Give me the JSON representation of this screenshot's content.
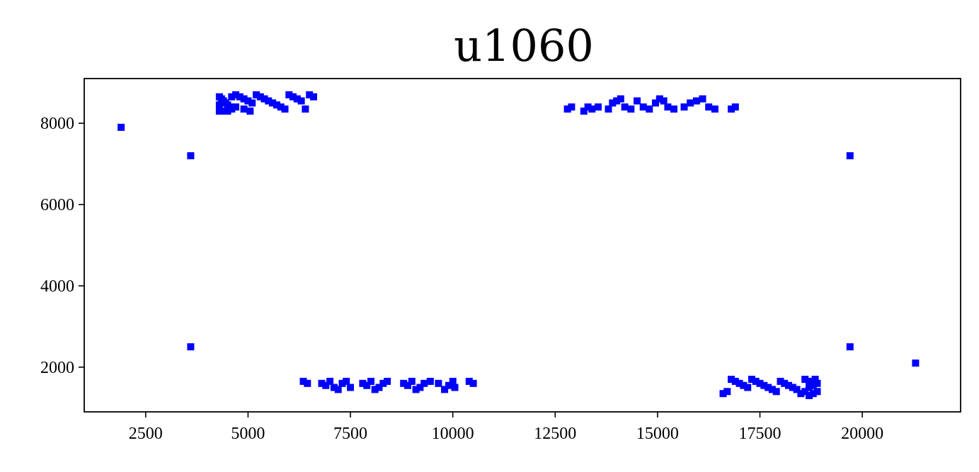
{
  "chart_data": {
    "type": "scatter",
    "title": "u1060",
    "xlabel": "",
    "ylabel": "",
    "xlim": [
      1000,
      22400
    ],
    "ylim": [
      900,
      9100
    ],
    "x_ticks": [
      2500,
      5000,
      7500,
      10000,
      12500,
      15000,
      17500,
      20000
    ],
    "x_tick_labels": [
      "2500",
      "5000",
      "7500",
      "10000",
      "12500",
      "15000",
      "17500",
      "20000"
    ],
    "y_ticks": [
      2000,
      4000,
      6000,
      8000
    ],
    "y_tick_labels": [
      "2000",
      "4000",
      "6000",
      "8000"
    ],
    "grid": false,
    "marker": "square",
    "color": "#0000ff",
    "series": [
      {
        "points": [
          [
            1900,
            7900
          ],
          [
            21300,
            2100
          ],
          [
            3600,
            7200
          ],
          [
            3600,
            2500
          ],
          [
            19700,
            7200
          ],
          [
            19700,
            2500
          ],
          [
            4300,
            8650
          ],
          [
            4350,
            8600
          ],
          [
            4400,
            8550
          ],
          [
            4450,
            8500
          ],
          [
            4500,
            8450
          ],
          [
            4550,
            8400
          ],
          [
            4600,
            8350
          ],
          [
            4300,
            8300
          ],
          [
            4400,
            8300
          ],
          [
            4500,
            8300
          ],
          [
            4300,
            8450
          ],
          [
            4600,
            8650
          ],
          [
            4700,
            8700
          ],
          [
            4800,
            8650
          ],
          [
            4900,
            8600
          ],
          [
            5000,
            8550
          ],
          [
            5100,
            8500
          ],
          [
            5200,
            8700
          ],
          [
            5300,
            8650
          ],
          [
            5400,
            8600
          ],
          [
            5500,
            8550
          ],
          [
            5600,
            8500
          ],
          [
            5700,
            8450
          ],
          [
            5800,
            8400
          ],
          [
            5900,
            8350
          ],
          [
            6000,
            8700
          ],
          [
            6100,
            8650
          ],
          [
            6200,
            8600
          ],
          [
            6300,
            8550
          ],
          [
            6400,
            8350
          ],
          [
            6500,
            8700
          ],
          [
            6600,
            8650
          ],
          [
            4700,
            8400
          ],
          [
            4900,
            8350
          ],
          [
            5050,
            8300
          ],
          [
            12800,
            8350
          ],
          [
            12900,
            8400
          ],
          [
            13200,
            8300
          ],
          [
            13300,
            8400
          ],
          [
            13400,
            8350
          ],
          [
            13550,
            8400
          ],
          [
            13800,
            8350
          ],
          [
            13900,
            8500
          ],
          [
            14000,
            8550
          ],
          [
            14100,
            8600
          ],
          [
            14200,
            8400
          ],
          [
            14350,
            8350
          ],
          [
            14500,
            8550
          ],
          [
            14650,
            8400
          ],
          [
            14800,
            8350
          ],
          [
            14950,
            8500
          ],
          [
            15050,
            8600
          ],
          [
            15150,
            8550
          ],
          [
            15250,
            8400
          ],
          [
            15400,
            8350
          ],
          [
            15650,
            8400
          ],
          [
            15800,
            8500
          ],
          [
            15950,
            8550
          ],
          [
            16100,
            8600
          ],
          [
            16250,
            8400
          ],
          [
            16400,
            8350
          ],
          [
            16800,
            8350
          ],
          [
            16900,
            8400
          ],
          [
            6350,
            1650
          ],
          [
            6450,
            1600
          ],
          [
            6800,
            1600
          ],
          [
            6900,
            1550
          ],
          [
            7000,
            1650
          ],
          [
            7100,
            1500
          ],
          [
            7200,
            1450
          ],
          [
            7300,
            1600
          ],
          [
            7400,
            1650
          ],
          [
            7500,
            1500
          ],
          [
            7800,
            1600
          ],
          [
            7900,
            1550
          ],
          [
            8000,
            1650
          ],
          [
            8100,
            1450
          ],
          [
            8200,
            1500
          ],
          [
            8300,
            1600
          ],
          [
            8400,
            1650
          ],
          [
            8800,
            1600
          ],
          [
            8900,
            1550
          ],
          [
            9000,
            1650
          ],
          [
            9100,
            1450
          ],
          [
            9200,
            1500
          ],
          [
            9300,
            1600
          ],
          [
            9450,
            1650
          ],
          [
            9650,
            1600
          ],
          [
            9800,
            1450
          ],
          [
            9900,
            1550
          ],
          [
            10000,
            1650
          ],
          [
            10050,
            1500
          ],
          [
            10400,
            1650
          ],
          [
            10500,
            1600
          ],
          [
            16600,
            1350
          ],
          [
            16700,
            1400
          ],
          [
            16800,
            1700
          ],
          [
            16900,
            1650
          ],
          [
            17000,
            1600
          ],
          [
            17100,
            1550
          ],
          [
            17200,
            1500
          ],
          [
            17300,
            1700
          ],
          [
            17400,
            1650
          ],
          [
            17500,
            1600
          ],
          [
            17600,
            1550
          ],
          [
            17700,
            1500
          ],
          [
            17800,
            1450
          ],
          [
            17900,
            1400
          ],
          [
            18000,
            1650
          ],
          [
            18100,
            1600
          ],
          [
            18200,
            1550
          ],
          [
            18300,
            1500
          ],
          [
            18400,
            1450
          ],
          [
            18500,
            1350
          ],
          [
            18600,
            1400
          ],
          [
            18700,
            1300
          ],
          [
            18700,
            1500
          ],
          [
            18700,
            1650
          ],
          [
            18800,
            1350
          ],
          [
            18800,
            1550
          ],
          [
            18900,
            1400
          ],
          [
            18900,
            1600
          ],
          [
            18600,
            1700
          ],
          [
            18850,
            1700
          ]
        ]
      }
    ]
  }
}
